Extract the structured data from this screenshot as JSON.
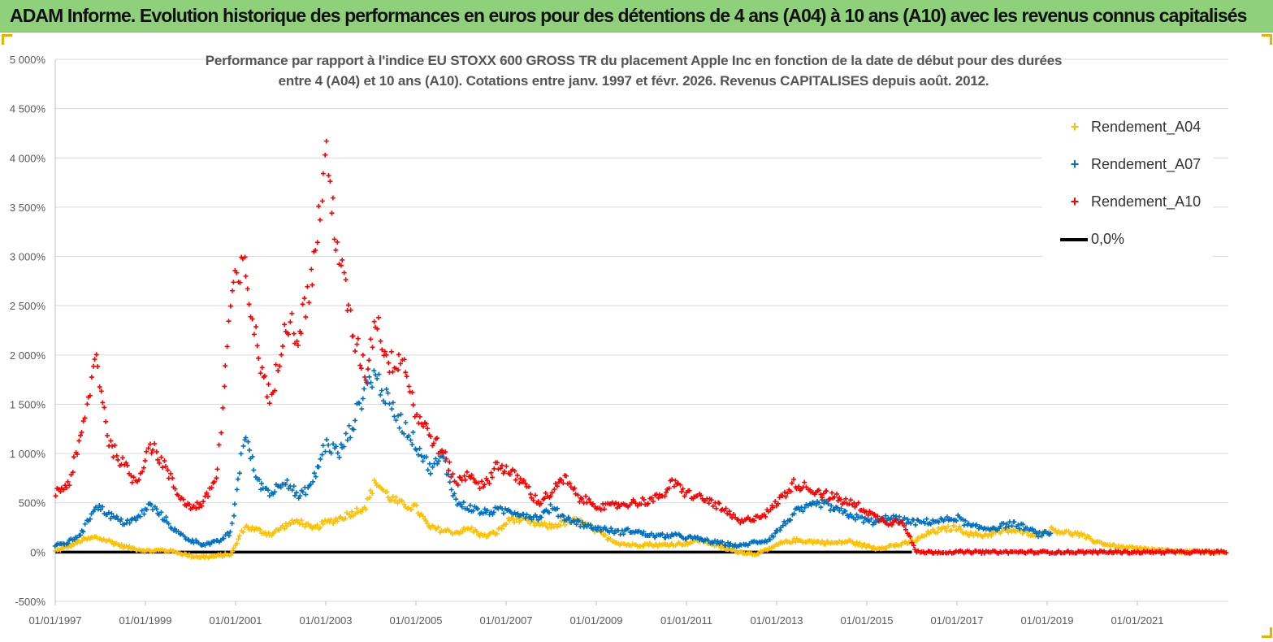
{
  "header": {
    "title": "ADAM Informe. Evolution historique des performances en euros pour des détentions de 4 ans (A04) à 10 ans (A10) avec les revenus connus capitalisés"
  },
  "chart_data": {
    "type": "scatter",
    "title_line1": "Performance par rapport à l'indice EU STOXX 600 GROSS TR  du placement Apple Inc en fonction de la date de début pour des durées",
    "title_line2": "entre 4 (A04) et 10 ans (A10).  Cotations entre janv. 1997 et févr. 2026. Revenus CAPITALISES depuis août. 2012.",
    "xlabel": "",
    "ylabel": "",
    "ylim": [
      -500,
      5000
    ],
    "xlim": [
      1997.0,
      2023.0
    ],
    "y_ticks": [
      "5 000%",
      "4 500%",
      "4 000%",
      "3 500%",
      "3 000%",
      "2 500%",
      "2 000%",
      "1 500%",
      "1 000%",
      "500%",
      "0%",
      "-500%"
    ],
    "y_tick_values": [
      5000,
      4500,
      4000,
      3500,
      3000,
      2500,
      2000,
      1500,
      1000,
      500,
      0,
      -500
    ],
    "x_ticks": [
      "01/01/1997",
      "01/01/1999",
      "01/01/2001",
      "01/01/2003",
      "01/01/2005",
      "01/01/2007",
      "01/01/2009",
      "01/01/2011",
      "01/01/2013",
      "01/01/2015",
      "01/01/2017",
      "01/01/2019",
      "01/01/2021"
    ],
    "x_tick_values": [
      1997,
      1999,
      2001,
      2003,
      2005,
      2007,
      2009,
      2011,
      2013,
      2015,
      2017,
      2019,
      2021
    ],
    "grid": true,
    "legend_position": "top-right",
    "series": [
      {
        "name": "Rendement_A04",
        "color": "#ffc000",
        "x": [
          1997.0,
          1997.3,
          1997.6,
          1997.9,
          1998.2,
          1998.5,
          1998.8,
          1999.1,
          1999.4,
          1999.7,
          2000.0,
          2000.3,
          2000.6,
          2000.9,
          2001.2,
          2001.5,
          2001.8,
          2002.1,
          2002.4,
          2002.7,
          2003.0,
          2003.3,
          2003.6,
          2003.9,
          2004.1,
          2004.4,
          2004.7,
          2005.0,
          2005.3,
          2005.6,
          2005.9,
          2006.2,
          2006.5,
          2006.8,
          2007.1,
          2007.4,
          2007.7,
          2008.0,
          2008.3,
          2008.6,
          2008.9,
          2009.2,
          2009.5,
          2009.8,
          2010.1,
          2010.4,
          2010.7,
          2011.0,
          2011.3,
          2011.6,
          2011.9,
          2012.2,
          2012.5,
          2012.8,
          2013.1,
          2013.4,
          2013.7,
          2014.0,
          2014.3,
          2014.6,
          2014.9,
          2015.2,
          2015.5,
          2015.8,
          2016.1,
          2016.4,
          2016.7,
          2017.0,
          2017.3,
          2017.6,
          2017.9,
          2018.2,
          2018.5,
          2018.8,
          2019.1,
          2019.4,
          2019.7,
          2020.0,
          2020.3,
          2020.6,
          2020.9,
          2021.2,
          2021.5,
          2021.8,
          2022.1,
          2022.4,
          2022.7,
          2023.0
        ],
        "values": [
          10,
          60,
          120,
          150,
          110,
          60,
          30,
          10,
          20,
          0,
          -40,
          -50,
          -40,
          -20,
          260,
          220,
          180,
          270,
          320,
          230,
          300,
          340,
          400,
          470,
          720,
          560,
          480,
          450,
          250,
          220,
          200,
          240,
          160,
          200,
          340,
          320,
          280,
          260,
          300,
          320,
          240,
          160,
          90,
          70,
          80,
          70,
          80,
          90,
          120,
          80,
          30,
          0,
          -20,
          20,
          90,
          120,
          110,
          100,
          90,
          110,
          70,
          40,
          60,
          80,
          120,
          200,
          230,
          250,
          180,
          170,
          200,
          220,
          200,
          180,
          230,
          200,
          180,
          120,
          80,
          50,
          40,
          30,
          20,
          10,
          5,
          0,
          0,
          0
        ]
      },
      {
        "name": "Rendement_A07",
        "color": "#0070c0",
        "x": [
          1997.0,
          1997.3,
          1997.6,
          1997.9,
          1998.2,
          1998.5,
          1998.8,
          1999.1,
          1999.4,
          1999.7,
          2000.0,
          2000.3,
          2000.6,
          2000.9,
          2001.2,
          2001.5,
          2001.8,
          2002.1,
          2002.4,
          2002.7,
          2003.0,
          2003.3,
          2003.6,
          2003.9,
          2004.1,
          2004.4,
          2004.7,
          2005.0,
          2005.3,
          2005.6,
          2005.9,
          2006.2,
          2006.5,
          2006.8,
          2007.1,
          2007.4,
          2007.7,
          2008.0,
          2008.3,
          2008.6,
          2008.9,
          2009.2,
          2009.5,
          2009.8,
          2010.1,
          2010.4,
          2010.7,
          2011.0,
          2011.3,
          2011.6,
          2011.9,
          2012.2,
          2012.5,
          2012.8,
          2013.1,
          2013.4,
          2013.7,
          2014.0,
          2014.3,
          2014.6,
          2014.9,
          2015.2,
          2015.5,
          2015.8,
          2016.1,
          2016.4,
          2016.7,
          2017.0,
          2017.3,
          2017.6,
          2017.9,
          2018.2,
          2018.5,
          2018.8,
          2019.1
        ],
        "values": [
          60,
          100,
          200,
          480,
          380,
          300,
          330,
          480,
          350,
          200,
          120,
          80,
          100,
          200,
          1200,
          700,
          600,
          750,
          550,
          700,
          1100,
          1000,
          1300,
          1700,
          1800,
          1500,
          1300,
          1100,
          850,
          950,
          500,
          450,
          400,
          420,
          420,
          380,
          350,
          450,
          350,
          300,
          250,
          230,
          200,
          220,
          180,
          160,
          170,
          150,
          130,
          100,
          80,
          60,
          100,
          120,
          250,
          400,
          450,
          500,
          430,
          380,
          330,
          300,
          360,
          320,
          300,
          310,
          320,
          350,
          260,
          240,
          250,
          290,
          250,
          180,
          190
        ]
      },
      {
        "name": "Rendement_A10",
        "color": "#ff0000",
        "x": [
          1997.0,
          1997.3,
          1997.6,
          1997.9,
          1998.2,
          1998.5,
          1998.8,
          1999.1,
          1999.4,
          1999.7,
          2000.0,
          2000.3,
          2000.6,
          2000.9,
          2001.2,
          2001.5,
          2001.8,
          2002.1,
          2002.4,
          2002.7,
          2003.0,
          2003.3,
          2003.6,
          2003.9,
          2004.1,
          2004.4,
          2004.7,
          2005.0,
          2005.3,
          2005.6,
          2005.9,
          2006.2,
          2006.5,
          2006.8,
          2007.1,
          2007.4,
          2007.7,
          2008.0,
          2008.3,
          2008.6,
          2008.9,
          2009.2,
          2009.5,
          2009.8,
          2010.1,
          2010.4,
          2010.7,
          2011.0,
          2011.3,
          2011.6,
          2011.9,
          2012.2,
          2012.5,
          2012.8,
          2013.1,
          2013.4,
          2013.7,
          2014.0,
          2014.3,
          2014.6,
          2014.9,
          2015.2,
          2015.5,
          2015.8,
          2016.1,
          2016.4,
          2016.7,
          2017.0,
          2017.3,
          2017.6,
          2017.9,
          2018.2,
          2018.5,
          2018.8,
          2019.1,
          2019.4,
          2019.7,
          2020.0,
          2020.3,
          2020.6,
          2020.9,
          2021.2,
          2021.5,
          2021.8,
          2022.1,
          2022.4,
          2022.7,
          2023.0
        ],
        "values": [
          600,
          700,
          1200,
          2000,
          1100,
          900,
          700,
          1100,
          900,
          600,
          450,
          500,
          800,
          2600,
          2900,
          2000,
          1500,
          2400,
          2200,
          2800,
          4000,
          3000,
          2200,
          1800,
          2400,
          1900,
          2000,
          1400,
          1200,
          1000,
          700,
          800,
          650,
          900,
          800,
          700,
          500,
          600,
          750,
          550,
          500,
          450,
          480,
          500,
          520,
          550,
          700,
          600,
          550,
          500,
          400,
          300,
          350,
          400,
          550,
          700,
          650,
          600,
          550,
          500,
          450,
          350,
          300,
          320,
          0,
          0,
          0,
          0,
          0,
          0,
          0,
          0,
          0,
          0,
          0,
          0,
          0,
          0,
          0,
          0,
          0,
          0,
          0,
          0,
          0,
          0,
          0,
          0
        ]
      },
      {
        "name": "0,0%",
        "color": "#000000",
        "x": [
          1997.0,
          2016.0
        ],
        "values": [
          0,
          0
        ]
      }
    ]
  }
}
